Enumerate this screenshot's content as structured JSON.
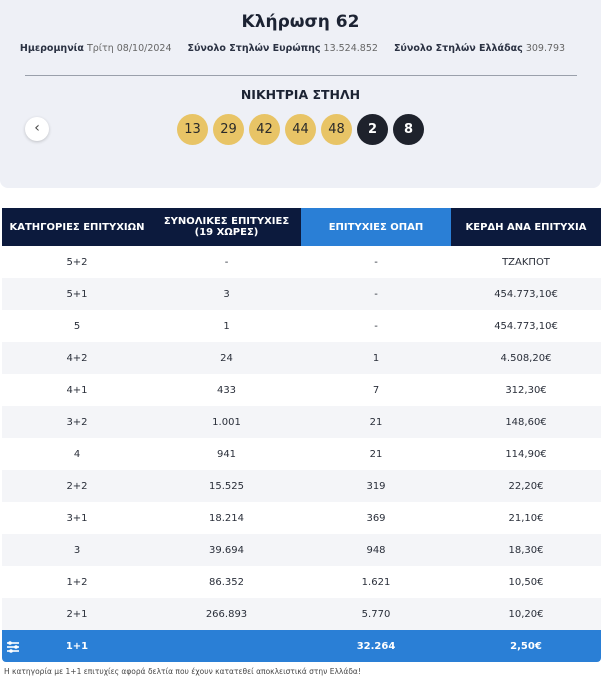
{
  "header": {
    "title": "Κλήρωση 62",
    "info": [
      {
        "label": "Ημερομηνία",
        "value": "Τρίτη 08/10/2024"
      },
      {
        "label": "Σύνολο Στηλών Ευρώπης",
        "value": "13.524.852"
      },
      {
        "label": "Σύνολο Στηλών Ελλάδας",
        "value": "309.793"
      }
    ]
  },
  "winning": {
    "title": "ΝΙΚΗΤΡΙΑ ΣΤΗΛΗ",
    "numbers": [
      "13",
      "29",
      "42",
      "44",
      "48"
    ],
    "stars": [
      "2",
      "8"
    ]
  },
  "table": {
    "columns": [
      "ΚΑΤΗΓΟΡΙΕΣ ΕΠΙΤΥΧΙΩΝ",
      "ΣΥΝΟΛΙΚΕΣ ΕΠΙΤΥΧΙΕΣ (19 ΧΩΡΕΣ)",
      "ΕΠΙΤΥΧΙΕΣ ΟΠΑΠ",
      "ΚΕΡΔΗ ΑΝΑ ΕΠΙΤΥΧΙΑ"
    ],
    "rows": [
      [
        "5+2",
        "-",
        "-",
        "ΤΖΑΚΠΟΤ"
      ],
      [
        "5+1",
        "3",
        "-",
        "454.773,10€"
      ],
      [
        "5",
        "1",
        "-",
        "454.773,10€"
      ],
      [
        "4+2",
        "24",
        "1",
        "4.508,20€"
      ],
      [
        "4+1",
        "433",
        "7",
        "312,30€"
      ],
      [
        "3+2",
        "1.001",
        "21",
        "148,60€"
      ],
      [
        "4",
        "941",
        "21",
        "114,90€"
      ],
      [
        "2+2",
        "15.525",
        "319",
        "22,20€"
      ],
      [
        "3+1",
        "18.214",
        "369",
        "21,10€"
      ],
      [
        "3",
        "39.694",
        "948",
        "18,30€"
      ],
      [
        "1+2",
        "86.352",
        "1.621",
        "10,50€"
      ],
      [
        "2+1",
        "266.893",
        "5.770",
        "10,20€"
      ],
      [
        "1+1",
        "",
        "32.264",
        "2,50€"
      ]
    ]
  },
  "footnote": "Η κατηγορία με 1+1 επιτυχίες αφορά δελτία που έχουν κατατεθεί αποκλειστικά στην Ελλάδα!"
}
